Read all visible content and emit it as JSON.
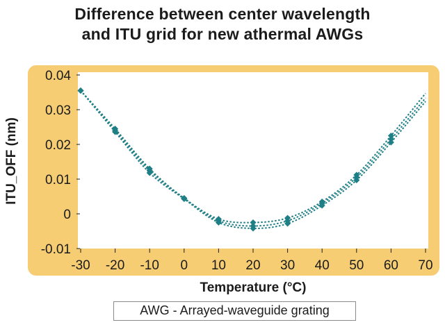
{
  "colors": {
    "frame": "#f6cd72",
    "plot_bg": "#ffffff",
    "series": "#1f7f86",
    "text": "#1b1b1b"
  },
  "note": "AWG - Arrayed-waveguide grating",
  "chart_data": {
    "type": "line",
    "title_line1": "Difference between center wavelength",
    "title_line2": "and ITU grid for new athermal AWGs",
    "xlabel": "Temperature (°C)",
    "ylabel": "ITU_OFF (nm)",
    "xlim": [
      -30,
      70
    ],
    "ylim": [
      -0.01,
      0.04
    ],
    "x_ticks": [
      -30,
      -20,
      -10,
      0,
      10,
      20,
      30,
      40,
      50,
      60,
      70
    ],
    "y_ticks": [
      0.04,
      0.03,
      0.02,
      0.01,
      0,
      -0.01
    ],
    "y_tick_labels": [
      "0.04",
      "0.03",
      "0.02",
      "0.01",
      "0",
      "-0.01"
    ],
    "x_tick_labels": [
      "-30",
      "-20",
      "-10",
      "0",
      "10",
      "20",
      "30",
      "40",
      "50",
      "60",
      "70"
    ],
    "grid": false,
    "marker": "diamond",
    "line_style": "dotted",
    "x": [
      -30,
      -20,
      -10,
      0,
      10,
      20,
      30,
      40,
      50,
      60
    ],
    "series": [
      {
        "values": [
          0.0355,
          0.0245,
          0.013,
          0.0045,
          -0.0015,
          -0.0025,
          -0.0012,
          0.0035,
          0.0112,
          0.0225
        ]
      },
      {
        "values": [
          0.0355,
          0.024,
          0.0125,
          0.0045,
          -0.002,
          -0.0035,
          -0.002,
          0.003,
          0.0105,
          0.0215
        ]
      },
      {
        "values": [
          0.0355,
          0.0236,
          0.0118,
          0.0043,
          -0.0025,
          -0.0042,
          -0.0028,
          0.0024,
          0.0097,
          0.0206
        ]
      }
    ]
  }
}
